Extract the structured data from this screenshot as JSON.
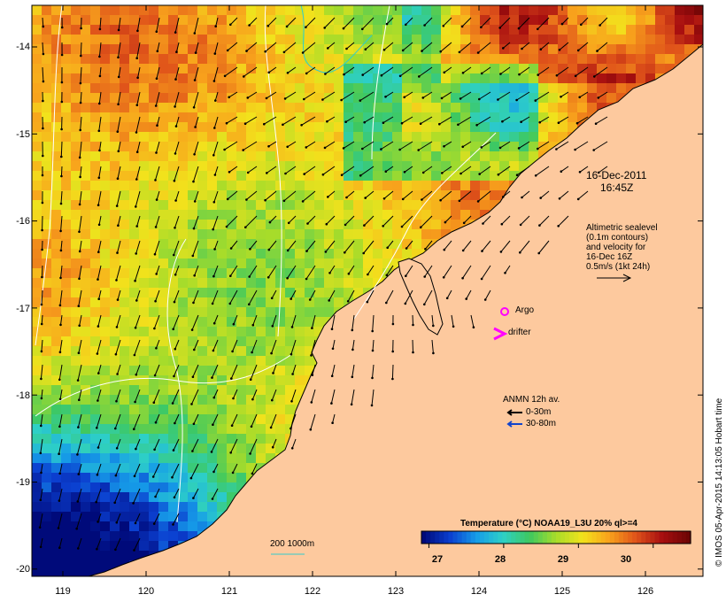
{
  "map": {
    "date_line": "16-Dec-2011",
    "time_line": "16:45Z",
    "altimetry_note": [
      "Altimetric sealevel",
      "(0.1m contours)",
      "and velocity for",
      "16-Dec 16Z",
      "0.5m/s (1kt 24h)"
    ],
    "argo_label": "Argo",
    "drifter_label": "drifter",
    "anmn_title": "ANMN 12h av.",
    "anmn_depths": [
      {
        "label": "0-30m",
        "color": "#000000"
      },
      {
        "label": "30-80m",
        "color": "#1144cc"
      }
    ],
    "bathymetry_legend": "200  1000m",
    "credit": "© IMOS 05-Apr-2015 14:13:05 Hobart time",
    "colorbar": {
      "title": "Temperature (°C) NOAA19_L3U 20% ql>=4",
      "ticks": [
        "27",
        "28",
        "29",
        "30"
      ],
      "range_c": [
        26.9,
        30.5
      ],
      "colors": [
        "#000a7a",
        "#0b3fd0",
        "#169de8",
        "#2ed0c6",
        "#3ec860",
        "#a8dc2a",
        "#f2e21c",
        "#f8a21c",
        "#e0541a",
        "#a80f10",
        "#6e0505"
      ]
    },
    "y_axis_labels": [
      "-14",
      "-15",
      "-16",
      "-17",
      "-18",
      "-19",
      "-20"
    ],
    "x_axis_labels": [
      "119",
      "120",
      "121",
      "122",
      "123",
      "124",
      "125",
      "126"
    ],
    "land_color": "#fdc99e",
    "sea_contour_color": "#ffffff",
    "bathy_contour_color": "#33cccc"
  }
}
